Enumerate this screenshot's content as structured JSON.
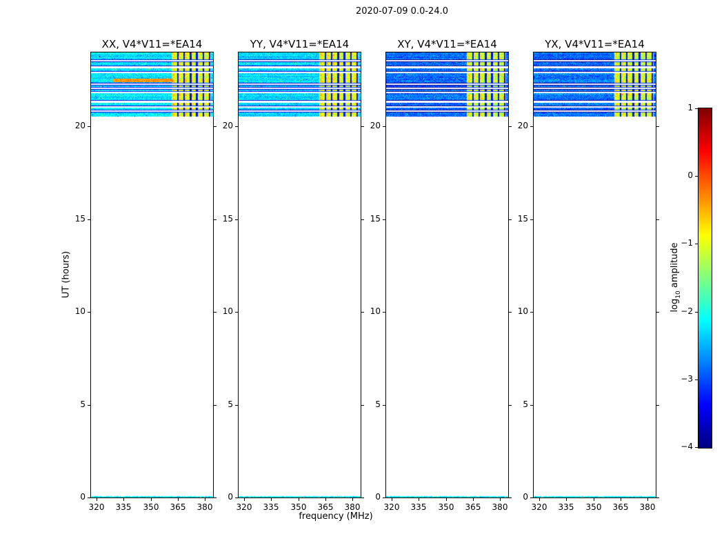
{
  "chart_data": {
    "type": "heatmap",
    "title": "2020-07-09 0.0-24.0",
    "xlabel": "frequency (MHz)",
    "ylabel": "UT (hours)",
    "xlim": [
      317,
      384
    ],
    "ylim": [
      0,
      24
    ],
    "x_ticks": [
      320,
      335,
      350,
      365,
      380
    ],
    "y_ticks": [
      0,
      5,
      10,
      15,
      20
    ],
    "panels": [
      {
        "label": "XX, V4*V11=*EA14",
        "base_log_amp": -2.25,
        "base_noise_sd": 0.3,
        "rfi_log_amp": -0.95,
        "rfi_noise_sd": 0.35,
        "orange_streak": {
          "t_range": [
            22.42,
            22.62
          ],
          "f_range": [
            329,
            362
          ],
          "log_amp": -0.35
        }
      },
      {
        "label": "YY, V4*V11=*EA14",
        "base_log_amp": -2.3,
        "base_noise_sd": 0.3,
        "rfi_log_amp": -0.9,
        "rfi_noise_sd": 0.35,
        "orange_streak": null
      },
      {
        "label": "XY, V4*V11=*EA14",
        "base_log_amp": -2.85,
        "base_noise_sd": 0.35,
        "rfi_log_amp": -1.05,
        "rfi_noise_sd": 0.4,
        "orange_streak": null
      },
      {
        "label": "YX, V4*V11=*EA14",
        "base_log_amp": -2.8,
        "base_noise_sd": 0.35,
        "rfi_log_amp": -1.0,
        "rfi_noise_sd": 0.4,
        "orange_streak": null
      }
    ],
    "observed_block": {
      "t_start": 20.55,
      "t_end": 24.0
    },
    "bottom_row": {
      "t_start": 0.0,
      "t_end": 0.1,
      "log_amp": -2.15
    },
    "rfi_band": {
      "f_start": 361.5,
      "f_end": 383.0
    },
    "channel_gap_freqs": [
      364.8,
      368.3,
      371.8,
      375.3,
      378.8,
      382.3
    ],
    "time_gaps": [
      [
        23.52,
        23.6
      ],
      [
        23.18,
        23.26
      ],
      [
        22.92,
        22.99
      ],
      [
        22.28,
        22.35
      ],
      [
        22.06,
        22.13
      ],
      [
        21.84,
        21.91
      ],
      [
        21.32,
        21.41
      ],
      [
        21.06,
        21.13
      ],
      [
        20.82,
        20.89
      ]
    ],
    "colorbar": {
      "label": "log10 amplitude",
      "label_prefix": "log",
      "label_sub": "10",
      "label_suffix": " amplitude",
      "vmin": -4,
      "vmax": 1,
      "ticks": [
        1,
        0,
        -1,
        -2,
        -3,
        -4
      ],
      "colormap": "jet"
    }
  }
}
